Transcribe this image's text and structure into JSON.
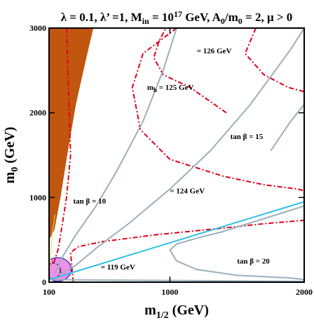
{
  "chart_data": {
    "type": "line",
    "title": "λ = 0.1, λ’ =1, M_in = 10^17 GeV, A_0/m_0 = 2, μ > 0",
    "title_parts": {
      "p1": "λ = 0.1, λ’ =1, M",
      "p1_sub": "in",
      "p2": " = 10",
      "p2_sup": "17",
      "p3": " GeV, A",
      "p3_sub": "0",
      "p4": "/m",
      "p4_sub": "0",
      "p5": " = 2, μ > 0"
    },
    "xlabel": {
      "main": "m",
      "sub": "1/2",
      "unit": " (GeV)"
    },
    "ylabel": {
      "main": "m",
      "sub": "0",
      "unit": " (GeV)"
    },
    "xlim": [
      100,
      2000
    ],
    "ylim": [
      0,
      3000
    ],
    "x_ticks": [
      100,
      1000,
      2000
    ],
    "x_tick_labels": [
      "100",
      "1000",
      "2000"
    ],
    "y_ticks": [
      0,
      1000,
      2000,
      3000
    ],
    "y_tick_labels": [
      "0",
      "1000",
      "2000",
      "3000"
    ],
    "colors": {
      "excluded_region": "#c1560f",
      "higgs_contour": "#e3001b",
      "tan_beta_contour": "#9bb0bc",
      "blue_line": "#2ebfe8",
      "ellipse_fill": "#ef8fe8",
      "ellipse_stroke": "#1b1bb0",
      "dark_dashed": "#222244",
      "yellow_line": "#e8e040"
    },
    "regions": [
      {
        "name": "excluded-region",
        "points": [
          [
            100,
            3000
          ],
          [
            100,
            500
          ],
          [
            140,
            620
          ],
          [
            185,
            1000
          ],
          [
            235,
            1500
          ],
          [
            300,
            2100
          ],
          [
            385,
            2700
          ],
          [
            430,
            3000
          ]
        ]
      }
    ],
    "series": [
      {
        "kind": "higgs",
        "points": [
          [
            230,
            3000
          ],
          [
            260,
            1500
          ],
          [
            230,
            1000
          ],
          [
            200,
            700
          ],
          [
            170,
            400
          ],
          [
            140,
            250
          ],
          [
            100,
            200
          ]
        ]
      },
      {
        "kind": "higgs",
        "points": [
          [
            280,
            0
          ],
          [
            260,
            350
          ],
          [
            320,
            420
          ],
          [
            500,
            480
          ],
          [
            900,
            560
          ],
          [
            1400,
            640
          ],
          [
            1700,
            690
          ],
          [
            2000,
            730
          ]
        ]
      },
      {
        "kind": "higgs",
        "points": [
          [
            1050,
            3000
          ],
          [
            800,
            2700
          ],
          [
            720,
            2300
          ],
          [
            780,
            1800
          ],
          [
            1000,
            1450
          ],
          [
            1400,
            1250
          ],
          [
            1700,
            1150
          ],
          [
            1950,
            1100
          ],
          [
            2000,
            1080
          ]
        ]
      },
      {
        "kind": "higgs",
        "points": [
          [
            1420,
            2000
          ],
          [
            1150,
            2300
          ],
          [
            950,
            2450
          ],
          [
            880,
            2650
          ],
          [
            920,
            2850
          ],
          [
            970,
            3000
          ]
        ]
      },
      {
        "kind": "higgs",
        "points": [
          [
            1640,
            3000
          ],
          [
            1560,
            2700
          ],
          [
            1700,
            2450
          ],
          [
            1880,
            2300
          ],
          [
            2000,
            2250
          ]
        ]
      },
      {
        "kind": "tan-beta",
        "points": [
          [
            140,
            100
          ],
          [
            200,
            300
          ],
          [
            300,
            560
          ],
          [
            450,
            900
          ],
          [
            600,
            1300
          ],
          [
            800,
            1900
          ],
          [
            950,
            2500
          ],
          [
            1050,
            3000
          ]
        ]
      },
      {
        "kind": "tan-beta",
        "points": [
          [
            190,
            100
          ],
          [
            300,
            200
          ],
          [
            450,
            400
          ],
          [
            700,
            700
          ],
          [
            1000,
            1100
          ],
          [
            1300,
            1550
          ],
          [
            1600,
            2100
          ],
          [
            1900,
            2750
          ],
          [
            2000,
            3000
          ]
        ]
      },
      {
        "kind": "tan-beta",
        "points": [
          [
            1750,
            1550
          ],
          [
            1900,
            1900
          ],
          [
            2000,
            2100
          ]
        ]
      },
      {
        "kind": "tan-beta",
        "points": [
          [
            2000,
            900
          ],
          [
            1800,
            800
          ],
          [
            1600,
            700
          ],
          [
            1400,
            600
          ],
          [
            1200,
            520
          ],
          [
            1050,
            450
          ],
          [
            1000,
            380
          ],
          [
            1050,
            250
          ],
          [
            1200,
            150
          ],
          [
            1500,
            80
          ],
          [
            1900,
            50
          ],
          [
            2000,
            30
          ]
        ]
      },
      {
        "kind": "tan-beta",
        "points": [
          [
            100,
            30
          ],
          [
            500,
            25
          ],
          [
            1000,
            20
          ],
          [
            1500,
            15
          ],
          [
            2000,
            10
          ]
        ]
      },
      {
        "kind": "blue",
        "points": [
          [
            100,
            30
          ],
          [
            2000,
            950
          ]
        ]
      },
      {
        "kind": "yellow",
        "points": [
          [
            145,
            800
          ],
          [
            125,
            600
          ],
          [
            115,
            400
          ],
          [
            105,
            200
          ],
          [
            100,
            120
          ]
        ]
      }
    ],
    "ellipse": {
      "cx": 165,
      "cy": 150,
      "rx": 100,
      "ry": 140
    },
    "annotations": [
      {
        "text": "= 126 GeV",
        "x": 1200,
        "y": 2700
      },
      {
        "text_main": "m",
        "text_sub": "h",
        "text_rest": " = 125 GeV",
        "x": 830,
        "y": 2270
      },
      {
        "text": "tan β = 15",
        "x": 1450,
        "y": 1690
      },
      {
        "text": "tan β = 10",
        "x": 280,
        "y": 930
      },
      {
        "text": "= 124 GeV",
        "x": 1000,
        "y": 1050
      },
      {
        "text": "= 119 GeV",
        "x": 485,
        "y": 150
      },
      {
        "text": "tan β = 20",
        "x": 1500,
        "y": 220
      }
    ]
  }
}
